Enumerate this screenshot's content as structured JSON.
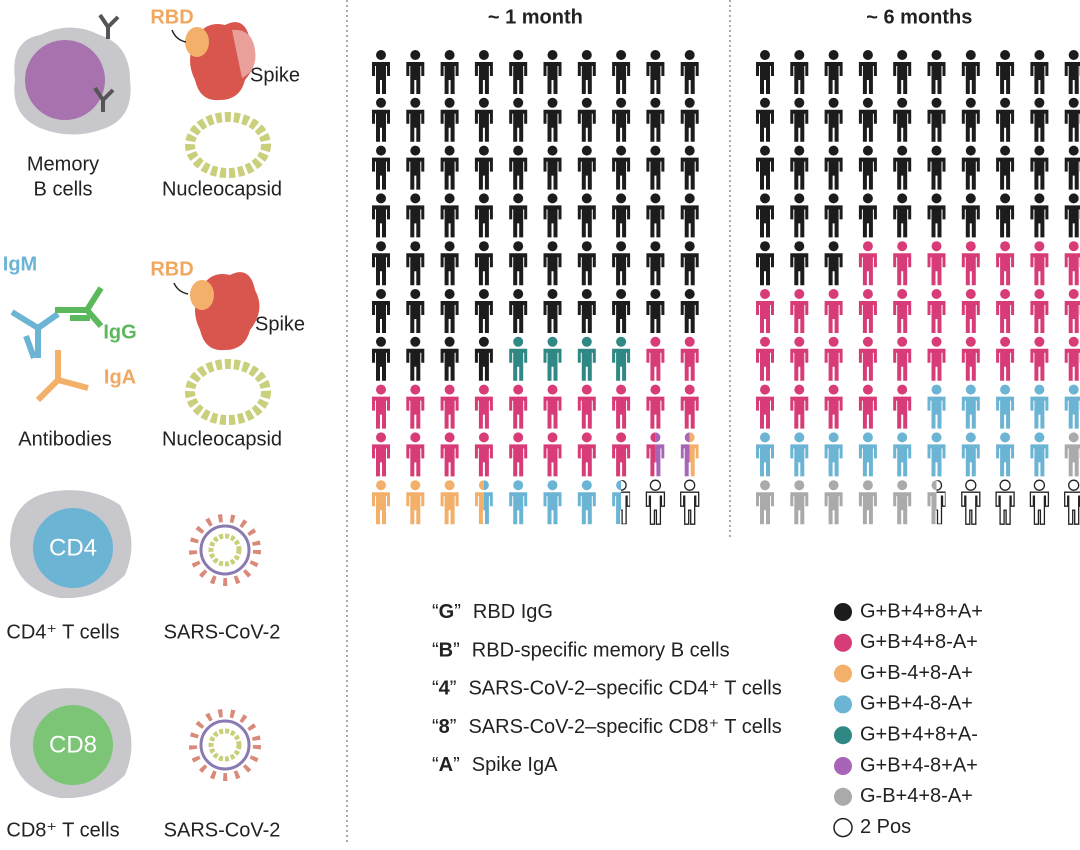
{
  "left_panel": {
    "memory_b": {
      "rbd": "RBD",
      "spike": "Spike",
      "label_line1": "Memory",
      "label_line2": "B cells",
      "nucleocapsid": "Nucleocapsid"
    },
    "antibodies": {
      "igm": "IgM",
      "igg": "IgG",
      "iga": "IgA",
      "rbd": "RBD",
      "spike": "Spike",
      "label": "Antibodies",
      "nucleocapsid": "Nucleocapsid"
    },
    "cd4": {
      "cell": "CD4",
      "label": "CD4⁺ T cells",
      "virus": "SARS-CoV-2"
    },
    "cd8": {
      "cell": "CD8",
      "label": "CD8⁺ T cells",
      "virus": "SARS-CoV-2"
    }
  },
  "panels": [
    {
      "title": "~ 1 month",
      "cells": [
        [
          0,
          0,
          0,
          0,
          0,
          0,
          0,
          0,
          0,
          0
        ],
        [
          0,
          0,
          0,
          0,
          0,
          0,
          0,
          0,
          0,
          0
        ],
        [
          0,
          0,
          0,
          0,
          0,
          0,
          0,
          0,
          0,
          0
        ],
        [
          0,
          0,
          0,
          0,
          0,
          0,
          0,
          0,
          0,
          0
        ],
        [
          0,
          0,
          0,
          0,
          0,
          0,
          0,
          0,
          0,
          0
        ],
        [
          0,
          0,
          0,
          0,
          0,
          0,
          0,
          0,
          0,
          0
        ],
        [
          0,
          0,
          0,
          0,
          4,
          4,
          4,
          4,
          1,
          1
        ],
        [
          1,
          1,
          1,
          1,
          1,
          1,
          1,
          1,
          1,
          1
        ],
        [
          1,
          1,
          1,
          1,
          1,
          1,
          1,
          1,
          [
            1,
            5
          ],
          [
            5,
            2
          ]
        ],
        [
          2,
          2,
          2,
          [
            2,
            3
          ],
          3,
          3,
          3,
          [
            3,
            7
          ],
          7,
          7
        ]
      ]
    },
    {
      "title": "~ 6 months",
      "cells": [
        [
          0,
          0,
          0,
          0,
          0,
          0,
          0,
          0,
          0,
          0
        ],
        [
          0,
          0,
          0,
          0,
          0,
          0,
          0,
          0,
          0,
          0
        ],
        [
          0,
          0,
          0,
          0,
          0,
          0,
          0,
          0,
          0,
          0
        ],
        [
          0,
          0,
          0,
          0,
          0,
          0,
          0,
          0,
          0,
          0
        ],
        [
          0,
          0,
          0,
          1,
          1,
          1,
          1,
          1,
          1,
          1
        ],
        [
          1,
          1,
          1,
          1,
          1,
          1,
          1,
          1,
          1,
          1
        ],
        [
          1,
          1,
          1,
          1,
          1,
          1,
          1,
          1,
          1,
          1
        ],
        [
          1,
          1,
          1,
          1,
          1,
          3,
          3,
          3,
          3,
          3
        ],
        [
          3,
          3,
          3,
          3,
          3,
          3,
          3,
          3,
          3,
          6
        ],
        [
          6,
          6,
          6,
          6,
          6,
          [
            6,
            7
          ],
          7,
          7,
          7,
          7
        ]
      ]
    }
  ],
  "key": {
    "quote_open": "“",
    "quote_close": "”",
    "items": [
      {
        "code": "G",
        "text": "RBD IgG"
      },
      {
        "code": "B",
        "text": "RBD-specific memory B cells"
      },
      {
        "code": "4",
        "text": "SARS-CoV-2–specific CD4⁺ T cells"
      },
      {
        "code": "8",
        "text": "SARS-CoV-2–specific CD8⁺ T cells"
      },
      {
        "code": "A",
        "text": "Spike IgA"
      }
    ]
  },
  "legend": [
    {
      "label": "G+B+4+8+A+",
      "color": "#1c1c1c"
    },
    {
      "label": "G+B+4+8-A+",
      "color": "#d83c78"
    },
    {
      "label": "G+B-4+8-A+",
      "color": "#f3b06a"
    },
    {
      "label": "G+B+4-8-A+",
      "color": "#6cb4d4"
    },
    {
      "label": "G+B+4+8+A-",
      "color": "#2f8884"
    },
    {
      "label": "G+B+4-8+A+",
      "color": "#a865b8"
    },
    {
      "label": "G-B+4+8-A+",
      "color": "#aaaaaa"
    },
    {
      "label": "2 Pos",
      "color": "#ffffff"
    }
  ]
}
